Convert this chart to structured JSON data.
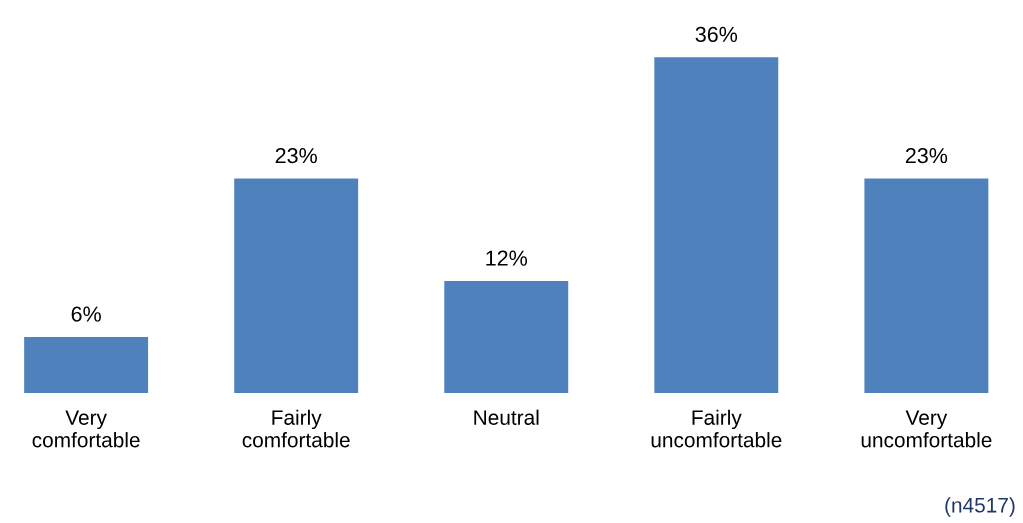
{
  "chart_data": {
    "type": "bar",
    "categories": [
      "Very\ncomfortable",
      "Fairly\ncomfortable",
      "Neutral",
      "Fairly\nuncomfortable",
      "Very\nuncomfortable"
    ],
    "values": [
      6,
      23,
      12,
      36,
      23
    ],
    "value_labels": [
      "6%",
      "23%",
      "12%",
      "36%",
      "23%"
    ],
    "color": "#4f81bd",
    "annotations": [
      "(n4517)"
    ],
    "tick_labels": "x",
    "grid": false,
    "legend": false
  }
}
